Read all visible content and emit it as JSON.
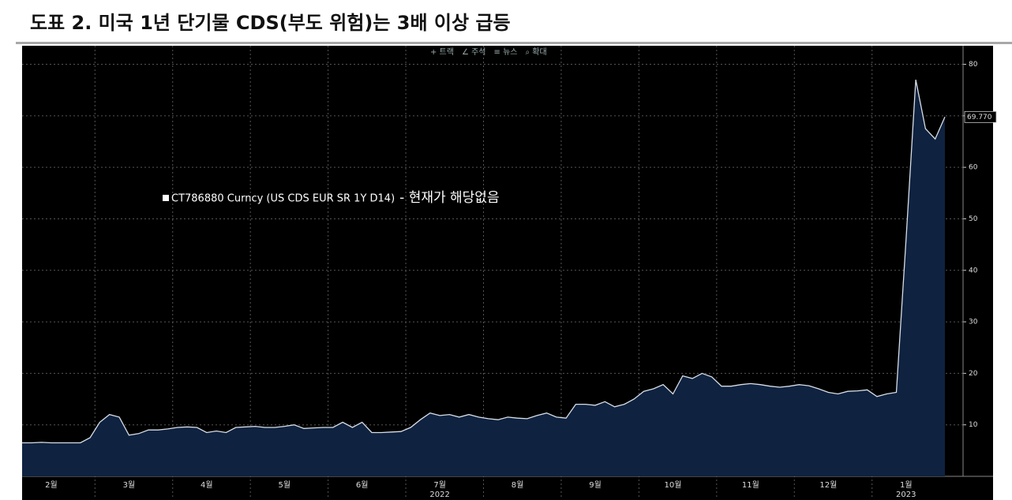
{
  "chart_data": {
    "type": "area",
    "title": "도표 2. 미국 1년 단기물 CDS(부도 위험)는 3배 이상 급등",
    "toolbar": [
      "+ 트랙",
      "∠ 주석",
      "≡ 뉴스",
      "⌕ 확대"
    ],
    "legend_note": "- 현재가 해당없음",
    "categories": [
      null,
      null,
      null,
      "2월",
      null,
      null,
      null,
      null,
      null,
      null,
      null,
      "3월",
      null,
      null,
      null,
      null,
      null,
      null,
      null,
      "4월",
      null,
      null,
      null,
      null,
      null,
      null,
      null,
      "5월",
      null,
      null,
      null,
      null,
      null,
      null,
      null,
      "6월",
      null,
      null,
      null,
      null,
      null,
      null,
      null,
      "7월",
      null,
      null,
      null,
      null,
      null,
      null,
      null,
      "8월",
      null,
      null,
      null,
      null,
      null,
      null,
      null,
      "9월",
      null,
      null,
      null,
      null,
      null,
      null,
      null,
      "10월",
      null,
      null,
      null,
      null,
      null,
      null,
      null,
      "11월",
      null,
      null,
      null,
      null,
      null,
      null,
      null,
      "12월",
      null,
      null,
      null,
      null,
      null,
      null,
      null,
      "1월",
      null,
      null,
      null,
      null
    ],
    "x_groups": [
      {
        "label": "2022",
        "category": "7월"
      },
      {
        "label": "2023",
        "category": "1월"
      }
    ],
    "series": [
      {
        "name": "CT786880 Curncy (US CDS EUR SR 1Y D14)",
        "color": "#d8dee6",
        "fill": "#0f2240",
        "values": [
          6.5,
          6.5,
          6.6,
          6.5,
          6.5,
          6.5,
          6.5,
          7.5,
          10.5,
          12,
          11.5,
          8,
          8.3,
          9,
          9,
          9.2,
          9.5,
          9.6,
          9.5,
          8.5,
          8.8,
          8.5,
          9.5,
          9.6,
          9.7,
          9.5,
          9.5,
          9.7,
          10,
          9.3,
          9.4,
          9.5,
          9.5,
          10.5,
          9.5,
          10.5,
          8.5,
          8.5,
          8.6,
          8.7,
          9.5,
          11,
          12.3,
          11.8,
          12,
          11.5,
          12,
          11.5,
          11.2,
          11,
          11.5,
          11.3,
          11.2,
          11.8,
          12.3,
          11.5,
          11.3,
          14,
          14,
          13.8,
          14.5,
          13.5,
          14,
          15,
          16.5,
          17,
          17.8,
          16,
          19.5,
          19,
          20,
          19.3,
          17.5,
          17.5,
          17.8,
          18,
          17.8,
          17.5,
          17.3,
          17.5,
          17.8,
          17.6,
          17,
          16.3,
          16,
          16.5,
          16.6,
          16.8,
          15.5,
          16,
          16.3,
          46,
          77,
          67.5,
          65.5,
          69.77
        ]
      }
    ],
    "last_value_label": "69.770",
    "ylim": [
      0,
      83.6
    ],
    "yticks": [
      10,
      20,
      30,
      40,
      50,
      60,
      70,
      80
    ],
    "grid": true
  }
}
